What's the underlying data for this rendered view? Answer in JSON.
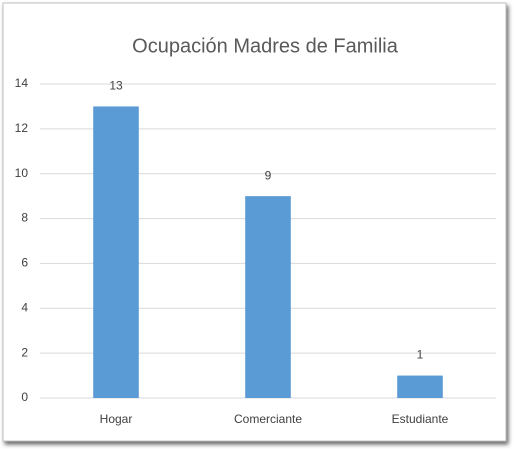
{
  "chart_data": {
    "type": "bar",
    "title": "Ocupación Madres de Familia",
    "categories": [
      "Hogar",
      "Comerciante",
      "Estudiante"
    ],
    "values": [
      13,
      9,
      1
    ],
    "color": "#5b9bd5",
    "ylim": [
      0,
      14
    ],
    "yticks": [
      0,
      2,
      4,
      6,
      8,
      10,
      12,
      14
    ],
    "grid": true
  }
}
